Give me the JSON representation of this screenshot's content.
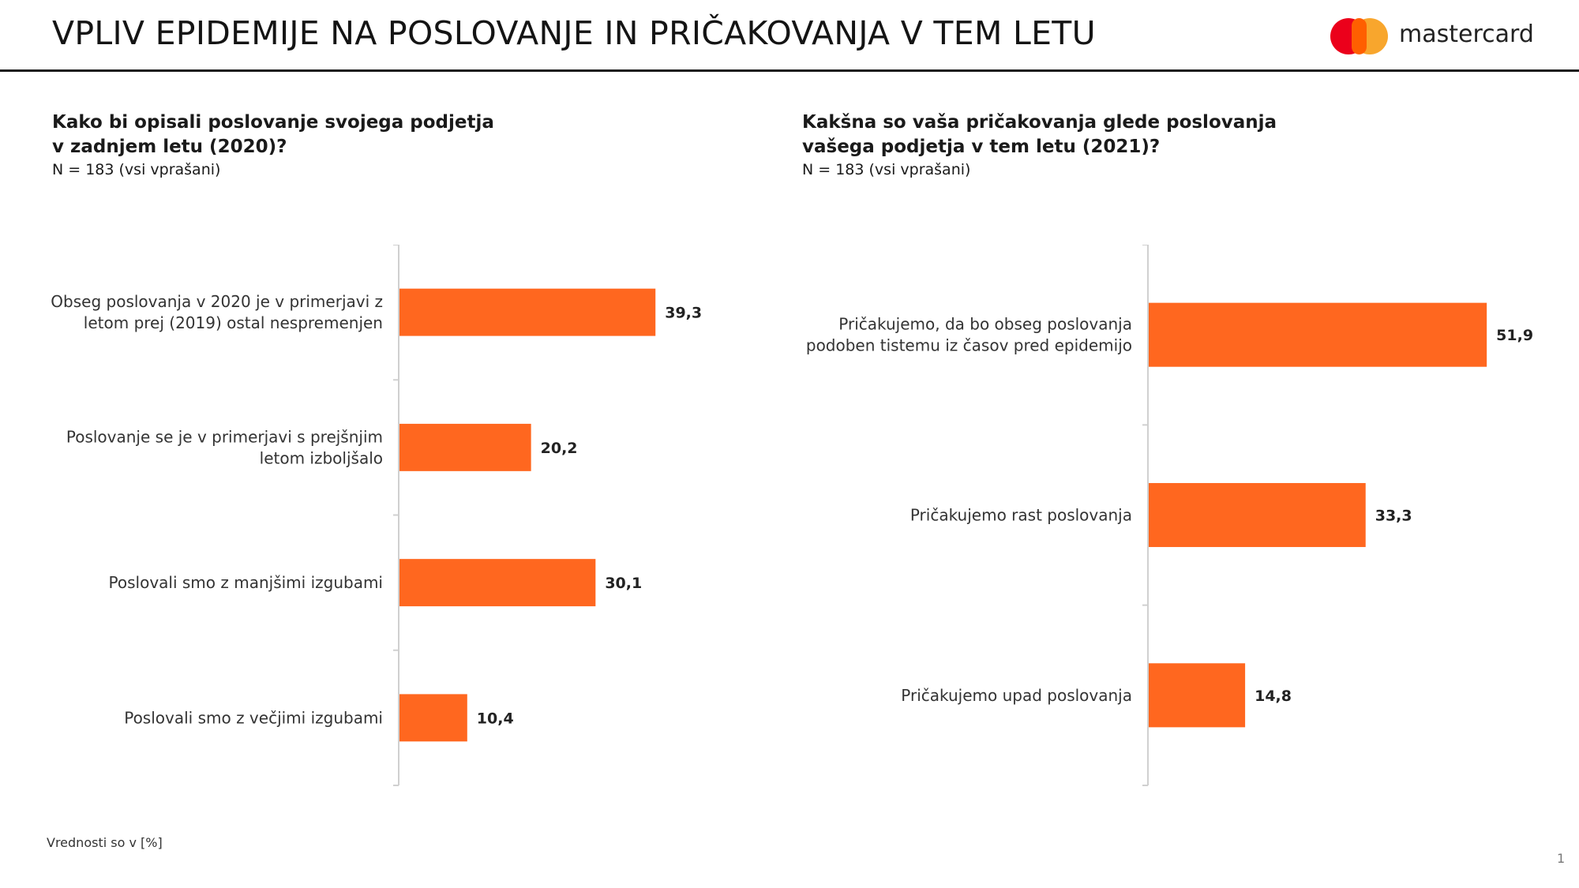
{
  "header": {
    "title": "VPLIV EPIDEMIJE NA POSLOVANJE IN PRIČAKOVANJA V TEM LETU",
    "logo_text": "mastercard",
    "logo_colors": {
      "red": "#eb001b",
      "yellow": "#f79e1b",
      "overlap": "#ff5f00"
    }
  },
  "left_panel": {
    "question_line1": "Kako bi opisali poslovanje svojega podjetja",
    "question_line2": "v zadnjem letu (2020)?",
    "sample": "N = 183 (vsi vprašani)"
  },
  "right_panel": {
    "question_line1": "Kakšna so vaša pričakovanja glede poslovanja",
    "question_line2": "vašega podjetja v tem letu (2021)?",
    "sample": "N = 183 (vsi vprašani)"
  },
  "footer": {
    "note": "Vrednosti so v [%]",
    "page_number": "1"
  },
  "bar_color": "#ff671f",
  "chart_data": [
    {
      "type": "bar",
      "orientation": "horizontal",
      "title": "Kako bi opisali poslovanje svojega podjetja v zadnjem letu (2020)?",
      "categories": [
        [
          "Obseg poslovanja v 2020 je v primerjavi z",
          "letom prej (2019) ostal nespremenjen"
        ],
        [
          "Poslovanje se je v primerjavi s prejšnjim",
          "letom izboljšalo"
        ],
        [
          "Poslovali smo z manjšimi izgubami"
        ],
        [
          "Poslovali smo z večjimi izgubami"
        ]
      ],
      "values": [
        39.3,
        20.2,
        30.1,
        10.4
      ],
      "value_labels": [
        "39,3",
        "20,2",
        "30,1",
        "10,4"
      ],
      "xlim": [
        0,
        60
      ]
    },
    {
      "type": "bar",
      "orientation": "horizontal",
      "title": "Kakšna so vaša pričakovanja glede poslovanja vašega podjetja v tem letu (2021)?",
      "categories": [
        [
          "Pričakujemo, da bo obseg poslovanja",
          "podoben tistemu iz časov pred epidemijo"
        ],
        [
          "Pričakujemo rast poslovanja"
        ],
        [
          "Pričakujemo upad poslovanja"
        ]
      ],
      "values": [
        51.9,
        33.3,
        14.8
      ],
      "value_labels": [
        "51,9",
        "33,3",
        "14,8"
      ],
      "xlim": [
        0,
        60
      ]
    }
  ]
}
